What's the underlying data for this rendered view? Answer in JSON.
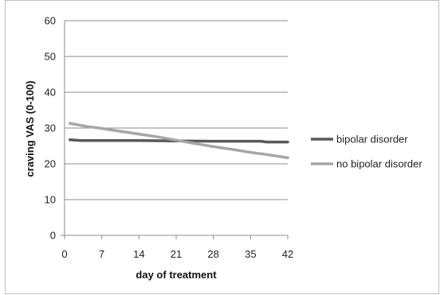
{
  "chart_data": {
    "type": "line",
    "title": "",
    "xlabel": "day of treatment",
    "ylabel": "craving VAS (0-100)",
    "xlim": [
      0,
      42
    ],
    "ylim": [
      0,
      60
    ],
    "x_ticks": [
      0,
      7,
      14,
      21,
      28,
      35,
      42
    ],
    "y_ticks": [
      0,
      10,
      20,
      30,
      40,
      50,
      60
    ],
    "grid": "horizontal",
    "legend_position": "right",
    "series": [
      {
        "name": "bipolar disorder",
        "color": "#595959",
        "x": [
          1,
          3,
          7,
          14,
          21,
          28,
          35,
          37,
          38,
          42
        ],
        "y": [
          26.7,
          26.5,
          26.5,
          26.5,
          26.4,
          26.3,
          26.3,
          26.3,
          26.1,
          26.1
        ]
      },
      {
        "name": "no bipolar disorder",
        "color": "#a6a6a6",
        "x": [
          1,
          4,
          7,
          10,
          14,
          18,
          21,
          24,
          28,
          32,
          35,
          38,
          42
        ],
        "y": [
          31.3,
          30.5,
          29.9,
          29.2,
          28.3,
          27.4,
          26.6,
          25.8,
          24.8,
          23.9,
          23.2,
          22.6,
          21.7
        ]
      }
    ]
  }
}
